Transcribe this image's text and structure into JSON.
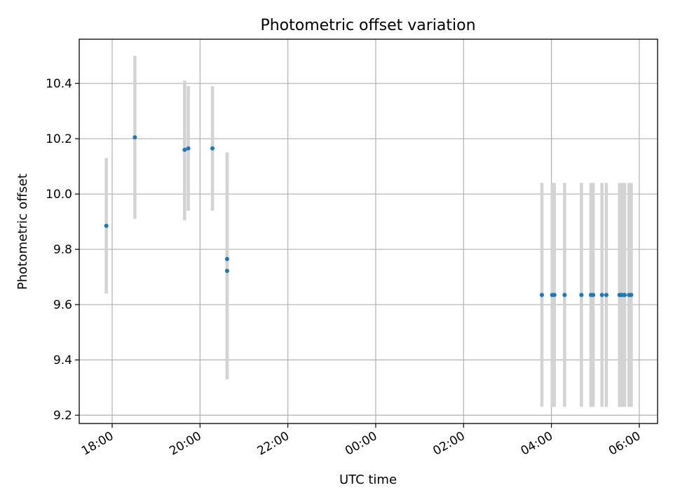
{
  "chart_data": {
    "type": "scatter",
    "title": "Photometric offset variation",
    "xlabel": "UTC time",
    "ylabel": "Photometric offset",
    "x_tick_labels": [
      "18:00",
      "20:00",
      "22:00",
      "00:00",
      "02:00",
      "04:00",
      "06:00"
    ],
    "y_tick_labels": [
      "9.2",
      "9.4",
      "9.6",
      "9.8",
      "10.0",
      "10.2",
      "10.4"
    ],
    "xlim": [
      "17:15",
      "06:25"
    ],
    "ylim": [
      9.17,
      10.56
    ],
    "grid": true,
    "colors": {
      "points": "#1f77b4",
      "error_bars": "#d3d3d3"
    },
    "points": [
      {
        "x": "17:52",
        "y": 9.885,
        "ylow": 9.64,
        "yhigh": 10.13
      },
      {
        "x": "18:31",
        "y": 10.205,
        "ylow": 9.91,
        "yhigh": 10.5
      },
      {
        "x": "19:39",
        "y": 10.16,
        "ylow": 9.905,
        "yhigh": 10.41
      },
      {
        "x": "19:44",
        "y": 10.165,
        "ylow": 9.94,
        "yhigh": 10.39
      },
      {
        "x": "20:17",
        "y": 10.165,
        "ylow": 9.94,
        "yhigh": 10.39
      },
      {
        "x": "20:37",
        "y": 9.765,
        "ylow": 9.33,
        "yhigh": 10.15
      },
      {
        "x": "20:37",
        "y": 9.722,
        "ylow": 9.33,
        "yhigh": 10.15
      },
      {
        "x": "03:47",
        "y": 9.635,
        "ylow": 9.23,
        "yhigh": 10.04
      },
      {
        "x": "04:01",
        "y": 9.635,
        "ylow": 9.23,
        "yhigh": 10.04
      },
      {
        "x": "04:04",
        "y": 9.635,
        "ylow": 9.23,
        "yhigh": 10.04
      },
      {
        "x": "04:18",
        "y": 9.635,
        "ylow": 9.23,
        "yhigh": 10.04
      },
      {
        "x": "04:41",
        "y": 9.635,
        "ylow": 9.23,
        "yhigh": 10.04
      },
      {
        "x": "04:54",
        "y": 9.635,
        "ylow": 9.23,
        "yhigh": 10.04
      },
      {
        "x": "04:57",
        "y": 9.635,
        "ylow": 9.23,
        "yhigh": 10.04
      },
      {
        "x": "05:09",
        "y": 9.635,
        "ylow": 9.23,
        "yhigh": 10.04
      },
      {
        "x": "05:15",
        "y": 9.635,
        "ylow": 9.23,
        "yhigh": 10.04
      },
      {
        "x": "05:33",
        "y": 9.635,
        "ylow": 9.23,
        "yhigh": 10.04
      },
      {
        "x": "05:35",
        "y": 9.635,
        "ylow": 9.23,
        "yhigh": 10.04
      },
      {
        "x": "05:37",
        "y": 9.635,
        "ylow": 9.23,
        "yhigh": 10.04
      },
      {
        "x": "05:40",
        "y": 9.635,
        "ylow": 9.23,
        "yhigh": 10.04
      },
      {
        "x": "05:46",
        "y": 9.635,
        "ylow": 9.23,
        "yhigh": 10.04
      },
      {
        "x": "05:49",
        "y": 9.635,
        "ylow": 9.23,
        "yhigh": 10.04
      }
    ]
  }
}
